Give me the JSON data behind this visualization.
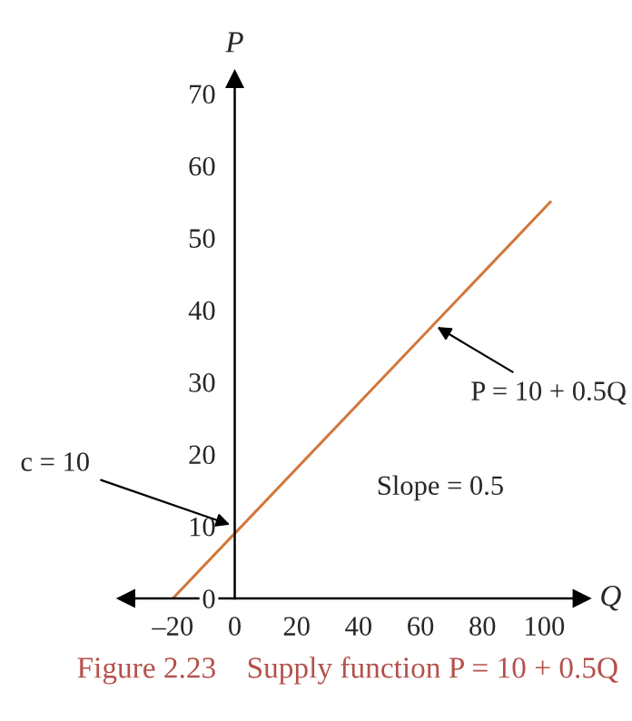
{
  "chart_data": {
    "type": "line",
    "title": "Figure 2.23    Supply function P = 10 + 0.5Q",
    "xlabel": "Q",
    "ylabel": "P",
    "x": [
      -20,
      102
    ],
    "series": [
      {
        "color": "#d2783c",
        "values": [
          0,
          55
        ]
      }
    ],
    "xlim": [
      -35,
      112
    ],
    "ylim": [
      0,
      72
    ],
    "xticks": [
      {
        "value": -20,
        "label": "–20"
      },
      0,
      20,
      40,
      60,
      80,
      100
    ],
    "yticks": [
      0,
      10,
      20,
      30,
      40,
      50,
      60,
      70
    ],
    "annotations": [
      {
        "text": "c = 10",
        "x": 0,
        "y": 10
      },
      {
        "text": "P = 10 + 0.5Q",
        "x": 64,
        "y": 38
      },
      "Slope = 0.5"
    ],
    "grid": false,
    "legend": false,
    "marker": "none",
    "line_style": "solid"
  }
}
